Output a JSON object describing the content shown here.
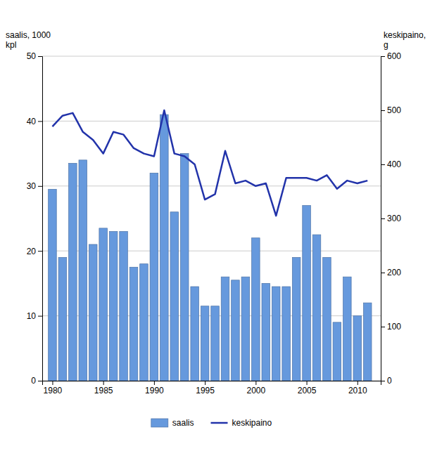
{
  "chart_data": {
    "type": "bar",
    "x": [
      1980,
      1981,
      1982,
      1983,
      1984,
      1985,
      1986,
      1987,
      1988,
      1989,
      1990,
      1991,
      1992,
      1993,
      1994,
      1995,
      1996,
      1997,
      1998,
      1999,
      2000,
      2001,
      2002,
      2003,
      2004,
      2005,
      2006,
      2007,
      2008,
      2009,
      2010,
      2011
    ],
    "series": [
      {
        "name": "saalis",
        "type": "bar",
        "color": "#6699dd",
        "values": [
          29.5,
          19.0,
          33.5,
          34.0,
          21.0,
          23.5,
          23.0,
          23.0,
          17.5,
          18.0,
          32.0,
          41.0,
          26.0,
          35.0,
          14.5,
          11.5,
          11.5,
          16.0,
          15.5,
          16.0,
          22.0,
          15.0,
          14.5,
          14.5,
          19.0,
          27.0,
          22.5,
          19.0,
          9.0,
          16.0,
          10.0,
          12.0
        ]
      },
      {
        "name": "keskipaino",
        "type": "line",
        "axis": "y2",
        "color": "#2233aa",
        "values": [
          470,
          490,
          495,
          460,
          445,
          420,
          460,
          455,
          430,
          420,
          415,
          500,
          420,
          415,
          400,
          335,
          345,
          425,
          365,
          370,
          360,
          365,
          305,
          375,
          375,
          375,
          370,
          380,
          355,
          370,
          365,
          370
        ]
      }
    ],
    "ylabel": "saalis, 1000\nkpl",
    "y2label": "keskipaino,\ng",
    "xlim": [
      1979.0,
      2012.3
    ],
    "xticks": [
      1980,
      1985,
      1990,
      1995,
      2000,
      2005,
      2010
    ],
    "ylim": [
      0,
      50
    ],
    "yticks": [
      0,
      10,
      20,
      30,
      40,
      50
    ],
    "y2lim": [
      0,
      600
    ],
    "y2ticks": [
      0,
      100,
      200,
      300,
      400,
      500,
      600
    ],
    "grid": true,
    "legend": "bottom"
  }
}
